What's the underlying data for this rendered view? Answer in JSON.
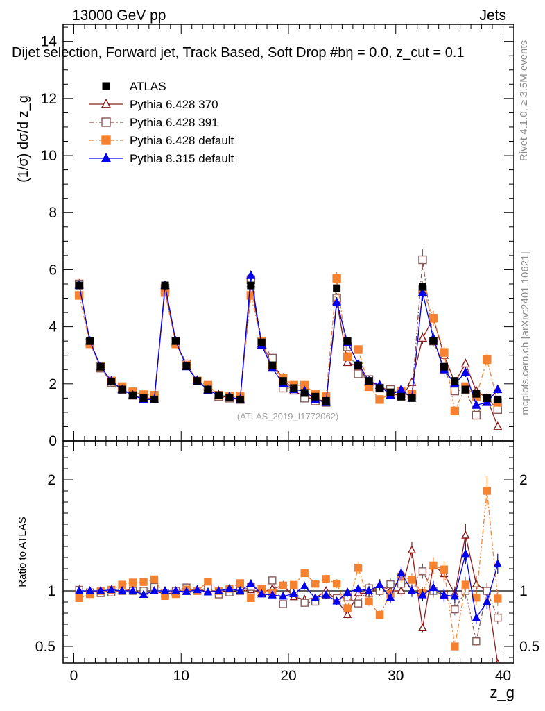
{
  "header": {
    "left": "13000 GeV pp",
    "right": "Jets"
  },
  "side_labels": {
    "rivet": "Rivet 4.1.0, ≥ 3.5M events",
    "mcplots": "mcplots.cern.ch [arXiv:2401.10621]"
  },
  "chart_data": {
    "type": "line",
    "title": "Dijet selection, Forward jet, Track Based, Soft Drop #bη = 0.0, z_cut = 0.1",
    "watermark": "(ATLAS_2019_I1772062)",
    "xlabel": "z_g",
    "ylabel": "(1/σ) dσ/d z_g",
    "ratio_ylabel": "Ratio to ATLAS",
    "xlim": [
      -1,
      41
    ],
    "ylim": [
      0,
      14.6
    ],
    "ratio_ylim": [
      0.35,
      2.35
    ],
    "x_ticks": [
      0,
      10,
      20,
      30,
      40
    ],
    "y_ticks": [
      0,
      2,
      4,
      6,
      8,
      10,
      12,
      14
    ],
    "ratio_ticks": [
      0.5,
      1,
      2
    ],
    "x": [
      0.5,
      1.5,
      2.5,
      3.5,
      4.5,
      5.5,
      6.5,
      7.5,
      8.5,
      9.5,
      10.5,
      11.5,
      12.5,
      13.5,
      14.5,
      15.5,
      16.5,
      17.5,
      18.5,
      19.5,
      20.5,
      21.5,
      22.5,
      23.5,
      24.5,
      25.5,
      26.5,
      27.5,
      28.5,
      29.5,
      30.5,
      31.5,
      32.5,
      33.5,
      34.5,
      35.5,
      36.5,
      37.5,
      38.5,
      39.5
    ],
    "reference": {
      "name": "ATLAS",
      "values": [
        5.45,
        3.5,
        2.6,
        2.08,
        1.8,
        1.6,
        1.5,
        1.45,
        5.45,
        3.5,
        2.62,
        2.1,
        1.8,
        1.6,
        1.52,
        1.45,
        5.45,
        3.45,
        2.65,
        2.1,
        1.85,
        1.68,
        1.55,
        1.4,
        5.35,
        3.5,
        2.65,
        2.1,
        1.85,
        1.7,
        1.55,
        1.5,
        5.4,
        3.5,
        2.6,
        2.1,
        1.8,
        1.65,
        1.5,
        1.45
      ]
    },
    "series": [
      {
        "name": "Pythia 6.428 370",
        "color": "#8b1a1a",
        "marker": "triangle-open",
        "dash": "solid",
        "values": [
          5.5,
          3.45,
          2.6,
          2.08,
          1.8,
          1.62,
          1.45,
          1.45,
          5.3,
          3.45,
          2.65,
          2.12,
          1.8,
          1.6,
          1.5,
          1.45,
          5.5,
          3.4,
          2.7,
          2.2,
          1.75,
          1.55,
          1.45,
          1.4,
          4.9,
          2.75,
          2.6,
          2.05,
          1.95,
          1.7,
          1.55,
          2.05,
          3.6,
          4.3,
          3.0,
          2.05,
          2.7,
          1.75,
          1.5,
          0.5
        ]
      },
      {
        "name": "Pythia 6.428 391",
        "color": "#8b5a5a",
        "marker": "square-open",
        "dash": "dashdot",
        "values": [
          5.5,
          3.45,
          2.55,
          2.05,
          1.8,
          1.6,
          1.5,
          1.5,
          5.35,
          3.5,
          2.7,
          2.1,
          1.85,
          1.55,
          1.5,
          1.45,
          5.65,
          3.5,
          2.9,
          1.85,
          1.85,
          1.5,
          1.4,
          1.35,
          5.0,
          3.3,
          2.35,
          2.15,
          1.85,
          1.8,
          1.65,
          1.6,
          6.35,
          3.5,
          2.5,
          1.75,
          1.8,
          0.9,
          1.5,
          1.1
        ]
      },
      {
        "name": "Pythia 6.428 default",
        "color": "#f58231",
        "marker": "square-filled",
        "dash": "dashdot",
        "values": [
          5.1,
          3.4,
          2.6,
          2.1,
          1.9,
          1.72,
          1.62,
          1.6,
          5.2,
          3.4,
          2.65,
          2.1,
          1.95,
          1.6,
          1.55,
          1.55,
          5.1,
          3.5,
          2.6,
          2.2,
          1.95,
          1.95,
          1.65,
          1.55,
          5.7,
          2.95,
          3.2,
          1.9,
          1.45,
          1.65,
          1.75,
          1.65,
          5.3,
          4.3,
          3.1,
          1.05,
          1.9,
          1.55,
          2.85,
          1.35
        ]
      },
      {
        "name": "Pythia 8.315 default",
        "color": "#0000ee",
        "marker": "triangle-filled",
        "dash": "solid",
        "values": [
          5.45,
          3.5,
          2.6,
          2.1,
          1.8,
          1.6,
          1.45,
          1.45,
          5.45,
          3.5,
          2.6,
          2.12,
          1.78,
          1.6,
          1.55,
          1.45,
          5.8,
          3.35,
          2.55,
          2.0,
          1.8,
          1.75,
          1.45,
          1.35,
          4.85,
          3.45,
          2.7,
          2.1,
          1.95,
          1.6,
          1.8,
          1.5,
          5.2,
          3.6,
          2.5,
          2.0,
          2.4,
          1.25,
          1.35,
          1.8
        ]
      }
    ]
  }
}
